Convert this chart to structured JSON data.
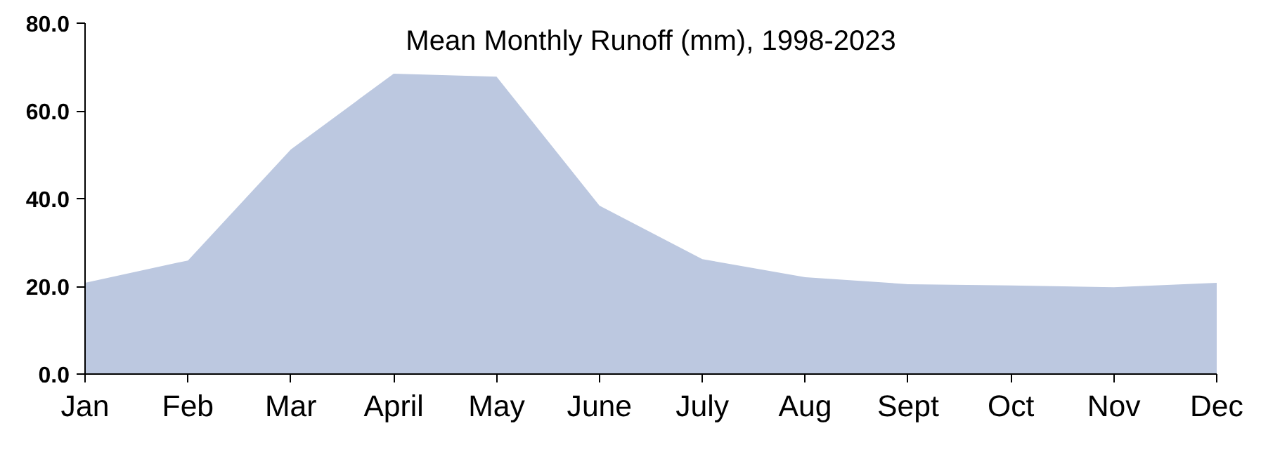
{
  "chart_data": {
    "type": "area",
    "title": "Mean Monthly Runoff (mm), 1998-2023",
    "categories": [
      "Jan",
      "Feb",
      "Mar",
      "April",
      "May",
      "June",
      "July",
      "Aug",
      "Sept",
      "Oct",
      "Nov",
      "Dec"
    ],
    "values": [
      20.8,
      25.9,
      51.2,
      68.5,
      67.8,
      38.4,
      26.2,
      22.1,
      20.5,
      20.2,
      19.8,
      20.8
    ],
    "color": "#bcc8e0",
    "ylim": [
      0,
      80
    ],
    "yticks": [
      {
        "value": 0,
        "label": "0.0"
      },
      {
        "value": 20,
        "label": "20.0"
      },
      {
        "value": 40,
        "label": "40.0"
      },
      {
        "value": 60,
        "label": "60.0"
      },
      {
        "value": 80,
        "label": "80.0"
      }
    ],
    "grid": false
  }
}
